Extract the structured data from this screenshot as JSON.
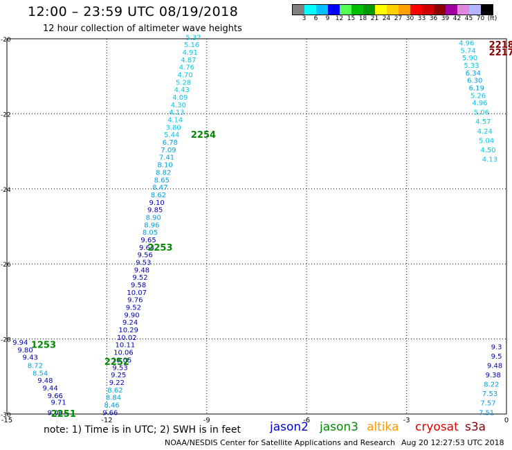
{
  "header": {
    "title": "12:00 – 23:59 UTC 08/19/2018",
    "subtitle": "12 hour collection of altimeter wave heights"
  },
  "legend": {
    "colors": [
      "#808080",
      "#00ffff",
      "#00bfff",
      "#0000ff",
      "#55ff55",
      "#00bf00",
      "#009900",
      "#ffff00",
      "#ffd000",
      "#ff9f00",
      "#ff0000",
      "#d00000",
      "#8b0000",
      "#a000a0",
      "#dd88dd",
      "#b4b4ff",
      "#000000"
    ],
    "labels": [
      "3",
      "6",
      "9",
      "12",
      "15",
      "18",
      "21",
      "24",
      "27",
      "30",
      "33",
      "36",
      "39",
      "42",
      "45",
      "70",
      "(ft)"
    ]
  },
  "footer": {
    "note": "note: 1) Time is in UTC; 2) SWH is in feet",
    "credit": "NOAA/NESDIS Center for Satellite Applications and Research",
    "timestamp": "Aug 20 12:27:53 UTC 2018"
  },
  "satellites": [
    {
      "name": "jason2",
      "color": "#0000cc"
    },
    {
      "name": "jason3",
      "color": "#008800"
    },
    {
      "name": "altika",
      "color": "#ff9900"
    },
    {
      "name": "cryosat",
      "color": "#dd0000"
    },
    {
      "name": "s3a",
      "color": "#880000"
    }
  ],
  "chart_data": {
    "type": "scatter",
    "title": "12 hour collection of altimeter wave heights",
    "xlabel": "",
    "ylabel": "",
    "xlim": [
      -15,
      0
    ],
    "ylim": [
      -30,
      -20
    ],
    "xticks": [
      -15,
      -12,
      -9,
      -6,
      -3,
      0
    ],
    "yticks": [
      -20,
      -22,
      -24,
      -26,
      -28,
      -30
    ],
    "grid": true,
    "points": [
      {
        "x": -9.4,
        "y": -19.95,
        "label": "5.37",
        "color": "#00c8e8"
      },
      {
        "x": -9.45,
        "y": -20.15,
        "label": "5.16",
        "color": "#00c8e8"
      },
      {
        "x": -9.5,
        "y": -20.35,
        "label": "4.91",
        "color": "#00c8e8"
      },
      {
        "x": -9.55,
        "y": -20.55,
        "label": "4.87",
        "color": "#00c8e8"
      },
      {
        "x": -9.6,
        "y": -20.75,
        "label": "4.76",
        "color": "#00c8e8"
      },
      {
        "x": -9.65,
        "y": -20.95,
        "label": "4.70",
        "color": "#00c8e8"
      },
      {
        "x": -9.7,
        "y": -21.15,
        "label": "5.28",
        "color": "#00c8e8"
      },
      {
        "x": -9.75,
        "y": -21.35,
        "label": "4.43",
        "color": "#00c8e8"
      },
      {
        "x": -9.8,
        "y": -21.55,
        "label": "4.09",
        "color": "#00c8e8"
      },
      {
        "x": -9.85,
        "y": -21.75,
        "label": "4.30",
        "color": "#00c8e8"
      },
      {
        "x": -9.9,
        "y": -21.95,
        "label": "4.13",
        "color": "#00c8e8"
      },
      {
        "x": -9.95,
        "y": -22.15,
        "label": "4.14",
        "color": "#00c8e8"
      },
      {
        "x": -10.0,
        "y": -22.35,
        "label": "3.80",
        "color": "#00c8e8"
      },
      {
        "x": -10.05,
        "y": -22.55,
        "label": "5.44",
        "color": "#00c8e8"
      },
      {
        "x": -10.1,
        "y": -22.75,
        "label": "6.78",
        "color": "#00a0e0"
      },
      {
        "x": -10.15,
        "y": -22.95,
        "label": "7.09",
        "color": "#00a0e0"
      },
      {
        "x": -10.2,
        "y": -23.15,
        "label": "7.41",
        "color": "#00a0e0"
      },
      {
        "x": -10.25,
        "y": -23.35,
        "label": "8.10",
        "color": "#00a0e0"
      },
      {
        "x": -10.3,
        "y": -23.55,
        "label": "8.82",
        "color": "#00a0e0"
      },
      {
        "x": -10.35,
        "y": -23.75,
        "label": "8.65",
        "color": "#00a0e0"
      },
      {
        "x": -10.4,
        "y": -23.95,
        "label": "8.47",
        "color": "#00a0e0"
      },
      {
        "x": -10.45,
        "y": -24.15,
        "label": "8.62",
        "color": "#00a0e0"
      },
      {
        "x": -10.5,
        "y": -24.35,
        "label": "9.10",
        "color": "#0000b0"
      },
      {
        "x": -10.55,
        "y": -24.55,
        "label": "9.85",
        "color": "#0000b0"
      },
      {
        "x": -10.6,
        "y": -24.75,
        "label": "8.90",
        "color": "#00a0e0"
      },
      {
        "x": -10.65,
        "y": -24.95,
        "label": "8.96",
        "color": "#00a0e0"
      },
      {
        "x": -10.7,
        "y": -25.15,
        "label": "8.05",
        "color": "#00a0e0"
      },
      {
        "x": -10.75,
        "y": -25.35,
        "label": "9.65",
        "color": "#0000b0"
      },
      {
        "x": -10.8,
        "y": -25.55,
        "label": "9.64",
        "color": "#0000b0"
      },
      {
        "x": -10.85,
        "y": -25.75,
        "label": "9.56",
        "color": "#0000b0"
      },
      {
        "x": -10.9,
        "y": -25.95,
        "label": "9.53",
        "color": "#0000b0"
      },
      {
        "x": -10.95,
        "y": -26.15,
        "label": "9.48",
        "color": "#0000b0"
      },
      {
        "x": -11.0,
        "y": -26.35,
        "label": "9.52",
        "color": "#0000b0"
      },
      {
        "x": -11.05,
        "y": -26.55,
        "label": "9.58",
        "color": "#0000b0"
      },
      {
        "x": -11.1,
        "y": -26.75,
        "label": "10.07",
        "color": "#0000b0"
      },
      {
        "x": -11.15,
        "y": -26.95,
        "label": "9.76",
        "color": "#0000b0"
      },
      {
        "x": -11.2,
        "y": -27.15,
        "label": "9.52",
        "color": "#0000b0"
      },
      {
        "x": -11.25,
        "y": -27.35,
        "label": "9.90",
        "color": "#0000b0"
      },
      {
        "x": -11.3,
        "y": -27.55,
        "label": "9.24",
        "color": "#0000b0"
      },
      {
        "x": -11.35,
        "y": -27.75,
        "label": "10.29",
        "color": "#0000b0"
      },
      {
        "x": -11.4,
        "y": -27.95,
        "label": "10.02",
        "color": "#0000b0"
      },
      {
        "x": -11.45,
        "y": -28.15,
        "label": "10.11",
        "color": "#0000b0"
      },
      {
        "x": -11.5,
        "y": -28.35,
        "label": "10.06",
        "color": "#0000b0"
      },
      {
        "x": -11.55,
        "y": -28.55,
        "label": "10.05",
        "color": "#0000b0"
      },
      {
        "x": -11.6,
        "y": -28.75,
        "label": "9.53",
        "color": "#0000b0"
      },
      {
        "x": -11.65,
        "y": -28.95,
        "label": "9.25",
        "color": "#0000b0"
      },
      {
        "x": -11.7,
        "y": -29.15,
        "label": "9.22",
        "color": "#0000b0"
      },
      {
        "x": -11.75,
        "y": -29.35,
        "label": "8.62",
        "color": "#00a0e0"
      },
      {
        "x": -11.8,
        "y": -29.55,
        "label": "8.84",
        "color": "#00a0e0"
      },
      {
        "x": -11.85,
        "y": -29.75,
        "label": "8.46",
        "color": "#00a0e0"
      },
      {
        "x": -11.9,
        "y": -29.95,
        "label": "9.66",
        "color": "#0000b0"
      },
      {
        "x": -14.6,
        "y": -28.08,
        "label": "9.94",
        "color": "#0000b0"
      },
      {
        "x": -14.45,
        "y": -28.28,
        "label": "9.80",
        "color": "#0000b0"
      },
      {
        "x": -14.3,
        "y": -28.48,
        "label": "9.43",
        "color": "#0000b0"
      },
      {
        "x": -14.15,
        "y": -28.7,
        "label": "8.72",
        "color": "#00a0e0"
      },
      {
        "x": -14.0,
        "y": -28.9,
        "label": "8.54",
        "color": "#00a0e0"
      },
      {
        "x": -13.85,
        "y": -29.1,
        "label": "9.48",
        "color": "#0000b0"
      },
      {
        "x": -13.7,
        "y": -29.3,
        "label": "9.44",
        "color": "#0000b0"
      },
      {
        "x": -13.55,
        "y": -29.5,
        "label": "9.66",
        "color": "#0000b0"
      },
      {
        "x": -13.45,
        "y": -29.68,
        "label": "9.71",
        "color": "#0000b0"
      },
      {
        "x": -13.55,
        "y": -29.95,
        "label": "9.06",
        "color": "#0000b0"
      },
      {
        "x": -1.2,
        "y": -20.1,
        "label": "4.96",
        "color": "#00c8e8"
      },
      {
        "x": -1.15,
        "y": -20.3,
        "label": "5.74",
        "color": "#00c8e8"
      },
      {
        "x": -1.1,
        "y": -20.5,
        "label": "5.90",
        "color": "#00c8e8"
      },
      {
        "x": -1.05,
        "y": -20.7,
        "label": "5.33",
        "color": "#00c8e8"
      },
      {
        "x": -1.0,
        "y": -20.9,
        "label": "6.34",
        "color": "#00a0e0"
      },
      {
        "x": -0.95,
        "y": -21.1,
        "label": "6.30",
        "color": "#00a0e0"
      },
      {
        "x": -0.9,
        "y": -21.3,
        "label": "6.19",
        "color": "#00a0e0"
      },
      {
        "x": -0.85,
        "y": -21.5,
        "label": "5.26",
        "color": "#00c8e8"
      },
      {
        "x": -0.8,
        "y": -21.7,
        "label": "4.96",
        "color": "#00c8e8"
      },
      {
        "x": -0.75,
        "y": -21.95,
        "label": "5.06",
        "color": "#00c8e8"
      },
      {
        "x": -0.7,
        "y": -22.2,
        "label": "4.57",
        "color": "#00c8e8"
      },
      {
        "x": -0.65,
        "y": -22.45,
        "label": "4.24",
        "color": "#00c8e8"
      },
      {
        "x": -0.6,
        "y": -22.7,
        "label": "5.04",
        "color": "#00c8e8"
      },
      {
        "x": -0.55,
        "y": -22.95,
        "label": "4.50",
        "color": "#00c8e8"
      },
      {
        "x": -0.5,
        "y": -23.2,
        "label": "4.13",
        "color": "#00c8e8"
      },
      {
        "x": -0.3,
        "y": -28.2,
        "label": "9.3",
        "color": "#0000b0"
      },
      {
        "x": -0.3,
        "y": -28.45,
        "label": "9.5",
        "color": "#0000b0"
      },
      {
        "x": -0.35,
        "y": -28.7,
        "label": "9.48",
        "color": "#0000b0"
      },
      {
        "x": -0.4,
        "y": -28.95,
        "label": "9.38",
        "color": "#0000b0"
      },
      {
        "x": -0.45,
        "y": -29.2,
        "label": "8.22",
        "color": "#00a0e0"
      },
      {
        "x": -0.5,
        "y": -29.45,
        "label": "7.53",
        "color": "#00a0e0"
      },
      {
        "x": -0.55,
        "y": -29.7,
        "label": "7.57",
        "color": "#00a0e0"
      },
      {
        "x": -0.6,
        "y": -29.95,
        "label": "7.51",
        "color": "#00a0e0"
      }
    ],
    "annotations": [
      {
        "x": -9.1,
        "y": -22.55,
        "text": "2254",
        "color": "#008800"
      },
      {
        "x": -10.4,
        "y": -25.55,
        "text": "2253",
        "color": "#008800"
      },
      {
        "x": -13.9,
        "y": -28.15,
        "text": "1253",
        "color": "#008800"
      },
      {
        "x": -11.7,
        "y": -28.6,
        "text": "2252",
        "color": "#008800"
      },
      {
        "x": -13.3,
        "y": -29.98,
        "text": "2251",
        "color": "#008800"
      },
      {
        "x": -0.15,
        "y": -20.15,
        "text": "2218",
        "color": "#880000"
      },
      {
        "x": -0.15,
        "y": -20.35,
        "text": "2217",
        "color": "#880000"
      }
    ]
  }
}
